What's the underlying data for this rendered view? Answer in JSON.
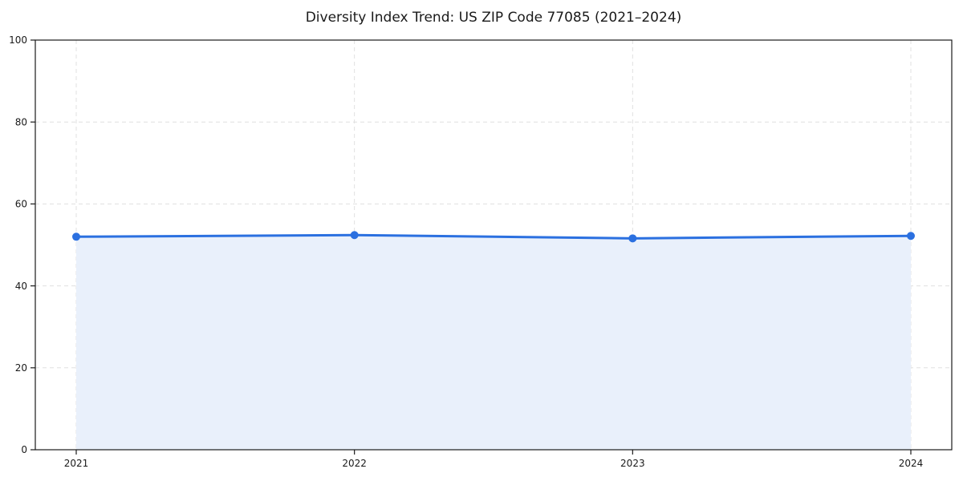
{
  "chart_data": {
    "type": "area",
    "title": "Diversity Index Trend: US ZIP Code 77085 (2021–2024)",
    "x": [
      2021,
      2022,
      2023,
      2024
    ],
    "xtick_labels": [
      "2021",
      "2022",
      "2023",
      "2024"
    ],
    "series": [
      {
        "name": "Diversity Index",
        "values": [
          52.0,
          52.4,
          51.6,
          52.2
        ]
      }
    ],
    "xlabel": "",
    "ylabel": "",
    "ylim": [
      0,
      100
    ],
    "yticks": [
      0,
      20,
      40,
      60,
      80,
      100
    ],
    "grid": true,
    "grid_style": "dashed",
    "legend_position": "none",
    "marker": "circle",
    "colors": {
      "line": "#2b70e0",
      "marker": "#2b70e0",
      "fill": "#e9f0fb",
      "grid": "#e0e0e0",
      "spine": "#1a1a1a",
      "text": "#1a1a1a",
      "background": "#ffffff"
    }
  }
}
